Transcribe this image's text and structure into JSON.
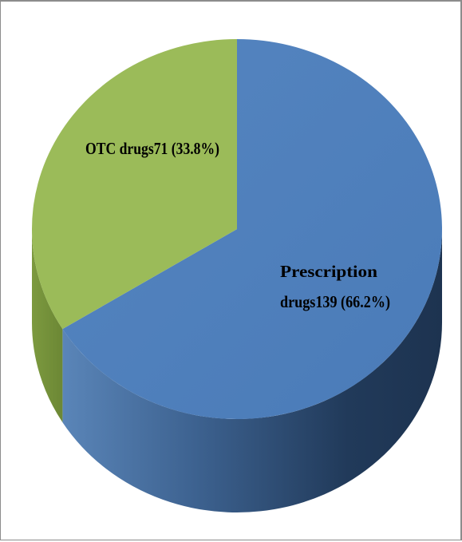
{
  "chart_data": {
    "type": "pie",
    "style": "3d",
    "slices": [
      {
        "label": "OTC drugs",
        "value": 71,
        "percent": 33.8,
        "label_lines": [
          "OTC drugs71 (33.8%)"
        ],
        "color": "#9bbb59"
      },
      {
        "label": "Prescription drugs",
        "value": 139,
        "percent": 66.2,
        "label_lines": [
          "Prescription",
          "drugs139 (66.2%)"
        ],
        "color": "#4f81bd"
      }
    ]
  }
}
